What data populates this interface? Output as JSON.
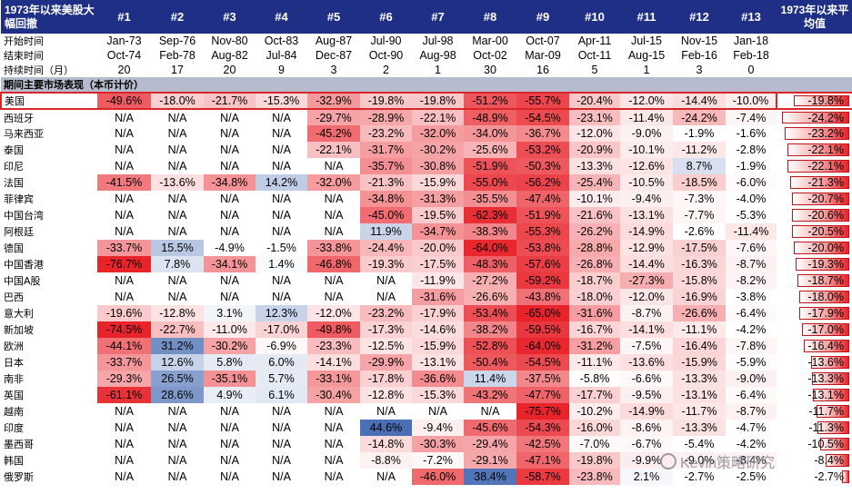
{
  "header": {
    "first": "1973年以来美股大幅回撤",
    "cols": [
      "#1",
      "#2",
      "#3",
      "#4",
      "#5",
      "#6",
      "#7",
      "#8",
      "#9",
      "#10",
      "#11",
      "#12",
      "#13"
    ],
    "last": "1973年以来平均值"
  },
  "meta": [
    {
      "label": "开始时间",
      "values": [
        "Jan-73",
        "Sep-76",
        "Nov-80",
        "Oct-83",
        "Aug-87",
        "Jul-90",
        "Jul-98",
        "Mar-00",
        "Oct-07",
        "Apr-11",
        "Jul-15",
        "Nov-15",
        "Jan-18"
      ]
    },
    {
      "label": "结束时间",
      "values": [
        "Oct-74",
        "Feb-78",
        "Aug-82",
        "Jul-84",
        "Dec-87",
        "Oct-90",
        "Aug-98",
        "Oct-02",
        "Mar-09",
        "Oct-11",
        "Aug-15",
        "Feb-16",
        "Feb-18"
      ]
    },
    {
      "label": "持续时间（月）",
      "values": [
        "20",
        "17",
        "20",
        "9",
        "3",
        "2",
        "1",
        "30",
        "16",
        "5",
        "1",
        "3",
        "0"
      ]
    }
  ],
  "section_title": "期间主要市场表现（本币计价）",
  "rows": [
    {
      "label": "美国",
      "values": [
        "-49.6%",
        "-18.0%",
        "-21.7%",
        "-15.3%",
        "-32.9%",
        "-19.8%",
        "-19.8%",
        "-51.2%",
        "-55.7%",
        "-20.4%",
        "-12.0%",
        "-14.4%",
        "-10.0%"
      ],
      "avg": "-19.8%",
      "avg_value": -19.8
    },
    {
      "label": "西班牙",
      "values": [
        "N/A",
        "N/A",
        "N/A",
        "N/A",
        "-29.7%",
        "-28.9%",
        "-22.1%",
        "-48.9%",
        "-54.5%",
        "-23.1%",
        "-11.4%",
        "-24.2%",
        "-7.4%"
      ],
      "avg": "-24.2%",
      "avg_value": -24.2
    },
    {
      "label": "马来西亚",
      "values": [
        "N/A",
        "N/A",
        "N/A",
        "N/A",
        "-45.2%",
        "-23.2%",
        "-32.0%",
        "-34.0%",
        "-36.7%",
        "-12.0%",
        "-9.0%",
        "-1.9%",
        "-1.6%"
      ],
      "avg": "-23.2%",
      "avg_value": -23.2
    },
    {
      "label": "泰国",
      "values": [
        "N/A",
        "N/A",
        "N/A",
        "N/A",
        "-22.1%",
        "-31.7%",
        "-30.2%",
        "-25.6%",
        "-53.2%",
        "-20.9%",
        "-10.1%",
        "-11.2%",
        "-2.8%"
      ],
      "avg": "-22.1%",
      "avg_value": -22.1
    },
    {
      "label": "印尼",
      "values": [
        "N/A",
        "N/A",
        "N/A",
        "N/A",
        "N/A",
        "-35.7%",
        "-30.8%",
        "-51.9%",
        "-50.3%",
        "-13.3%",
        "-12.6%",
        "8.7%",
        "-1.9%"
      ],
      "avg": "-22.1%",
      "avg_value": -22.1
    },
    {
      "label": "法国",
      "values": [
        "-41.5%",
        "-13.6%",
        "-34.8%",
        "14.2%",
        "-32.0%",
        "-21.3%",
        "-15.9%",
        "-55.0%",
        "-56.2%",
        "-25.4%",
        "-10.5%",
        "-18.5%",
        "-6.0%"
      ],
      "avg": "-21.3%",
      "avg_value": -21.3
    },
    {
      "label": "菲律宾",
      "values": [
        "N/A",
        "N/A",
        "N/A",
        "N/A",
        "N/A",
        "-34.8%",
        "-31.3%",
        "-35.5%",
        "-47.4%",
        "-10.1%",
        "-9.4%",
        "-7.3%",
        "-4.0%"
      ],
      "avg": "-20.7%",
      "avg_value": -20.7
    },
    {
      "label": "中国台湾",
      "values": [
        "N/A",
        "N/A",
        "N/A",
        "N/A",
        "N/A",
        "-45.0%",
        "-19.5%",
        "-62.3%",
        "-51.9%",
        "-21.6%",
        "-13.1%",
        "-7.7%",
        "-5.3%"
      ],
      "avg": "-20.6%",
      "avg_value": -20.6
    },
    {
      "label": "阿根廷",
      "values": [
        "N/A",
        "N/A",
        "N/A",
        "N/A",
        "N/A",
        "11.9%",
        "-34.7%",
        "-38.3%",
        "-55.3%",
        "-26.2%",
        "-14.9%",
        "-2.6%",
        "-11.4%"
      ],
      "avg": "-20.5%",
      "avg_value": -20.5
    },
    {
      "label": "德国",
      "values": [
        "-33.7%",
        "15.5%",
        "-4.9%",
        "-1.5%",
        "-33.8%",
        "-24.4%",
        "-20.0%",
        "-64.0%",
        "-53.8%",
        "-28.8%",
        "-12.9%",
        "-17.5%",
        "-7.6%"
      ],
      "avg": "-20.0%",
      "avg_value": -20.0
    },
    {
      "label": "中国香港",
      "values": [
        "-76.7%",
        "7.8%",
        "-34.1%",
        "1.4%",
        "-46.8%",
        "-19.3%",
        "-17.5%",
        "-48.3%",
        "-57.6%",
        "-26.8%",
        "-14.4%",
        "-16.3%",
        "-8.7%"
      ],
      "avg": "-19.3%",
      "avg_value": -19.3
    },
    {
      "label": "中国A股",
      "values": [
        "N/A",
        "N/A",
        "N/A",
        "N/A",
        "N/A",
        "N/A",
        "-11.9%",
        "-27.2%",
        "-59.2%",
        "-18.7%",
        "-27.3%",
        "-15.8%",
        "-8.2%"
      ],
      "avg": "-18.7%",
      "avg_value": -18.7
    },
    {
      "label": "巴西",
      "values": [
        "N/A",
        "N/A",
        "N/A",
        "N/A",
        "N/A",
        "N/A",
        "-31.6%",
        "-26.6%",
        "-43.8%",
        "-18.0%",
        "-12.0%",
        "-16.9%",
        "-3.8%"
      ],
      "avg": "-18.0%",
      "avg_value": -18.0
    },
    {
      "label": "意大利",
      "values": [
        "-19.6%",
        "-12.8%",
        "3.1%",
        "12.3%",
        "-12.0%",
        "-23.2%",
        "-17.9%",
        "-53.4%",
        "-65.0%",
        "-31.6%",
        "-8.7%",
        "-26.6%",
        "-6.4%"
      ],
      "avg": "-17.9%",
      "avg_value": -17.9
    },
    {
      "label": "新加坡",
      "values": [
        "-74.5%",
        "-22.7%",
        "-11.0%",
        "-17.0%",
        "-49.8%",
        "-17.3%",
        "-14.6%",
        "-38.2%",
        "-59.5%",
        "-16.7%",
        "-14.1%",
        "-11.1%",
        "-4.2%"
      ],
      "avg": "-17.0%",
      "avg_value": -17.0
    },
    {
      "label": "欧洲",
      "values": [
        "-44.1%",
        "31.2%",
        "-30.2%",
        "-6.9%",
        "-23.3%",
        "-12.5%",
        "-15.9%",
        "-52.8%",
        "-64.0%",
        "-31.2%",
        "-7.5%",
        "-16.4%",
        "-7.8%"
      ],
      "avg": "-16.4%",
      "avg_value": -16.4
    },
    {
      "label": "日本",
      "values": [
        "-33.7%",
        "12.6%",
        "5.8%",
        "6.0%",
        "-14.1%",
        "-29.9%",
        "-13.1%",
        "-50.4%",
        "-54.5%",
        "-11.1%",
        "-13.6%",
        "-15.9%",
        "-5.9%"
      ],
      "avg": "-13.6%",
      "avg_value": -13.6
    },
    {
      "label": "南非",
      "values": [
        "-29.3%",
        "26.5%",
        "-35.1%",
        "5.7%",
        "-33.1%",
        "-17.8%",
        "-36.6%",
        "11.4%",
        "-37.5%",
        "-5.8%",
        "-6.6%",
        "-13.3%",
        "-9.0%"
      ],
      "avg": "-13.3%",
      "avg_value": -13.3
    },
    {
      "label": "英国",
      "values": [
        "-61.1%",
        "28.6%",
        "4.9%",
        "6.1%",
        "-30.4%",
        "-12.8%",
        "-15.3%",
        "-43.2%",
        "-47.7%",
        "-17.7%",
        "-9.5%",
        "-13.1%",
        "-6.4%"
      ],
      "avg": "-13.1%",
      "avg_value": -13.1
    },
    {
      "label": "越南",
      "values": [
        "N/A",
        "N/A",
        "N/A",
        "N/A",
        "N/A",
        "N/A",
        "N/A",
        "N/A",
        "-75.7%",
        "-10.2%",
        "-14.9%",
        "-11.7%",
        "-8.7%"
      ],
      "avg": "-11.7%",
      "avg_value": -11.7
    },
    {
      "label": "印度",
      "values": [
        "N/A",
        "N/A",
        "N/A",
        "N/A",
        "N/A",
        "44.6%",
        "-9.4%",
        "-45.6%",
        "-54.3%",
        "-16.0%",
        "-8.6%",
        "-13.3%",
        "-4.7%"
      ],
      "avg": "-11.3%",
      "avg_value": -11.3
    },
    {
      "label": "墨西哥",
      "values": [
        "N/A",
        "N/A",
        "N/A",
        "N/A",
        "N/A",
        "-14.8%",
        "-30.3%",
        "-29.4%",
        "-42.5%",
        "-7.0%",
        "-6.7%",
        "-5.4%",
        "-4.2%"
      ],
      "avg": "-10.5%",
      "avg_value": -10.5
    },
    {
      "label": "韩国",
      "values": [
        "N/A",
        "N/A",
        "N/A",
        "N/A",
        "N/A",
        "-8.8%",
        "-7.2%",
        "-29.1%",
        "-47.1%",
        "-19.8%",
        "-9.9%",
        "-9.0%",
        "-8.4%"
      ],
      "avg": "-8.4%",
      "avg_value": -8.4
    },
    {
      "label": "俄罗斯",
      "values": [
        "N/A",
        "N/A",
        "N/A",
        "N/A",
        "N/A",
        "N/A",
        "-46.0%",
        "38.4%",
        "-58.7%",
        "-23.8%",
        "2.1%",
        "-2.7%",
        "-2.5%"
      ],
      "avg": "-2.7%",
      "avg_value": -2.7
    }
  ],
  "colors": {
    "header_bg": "#1f2f86",
    "section_bg": "#b6bccd",
    "negative": "#e8232a",
    "positive": "#4a6fb5",
    "highlight_border": "#d9262b"
  },
  "watermark": "Kevin策略研究"
}
